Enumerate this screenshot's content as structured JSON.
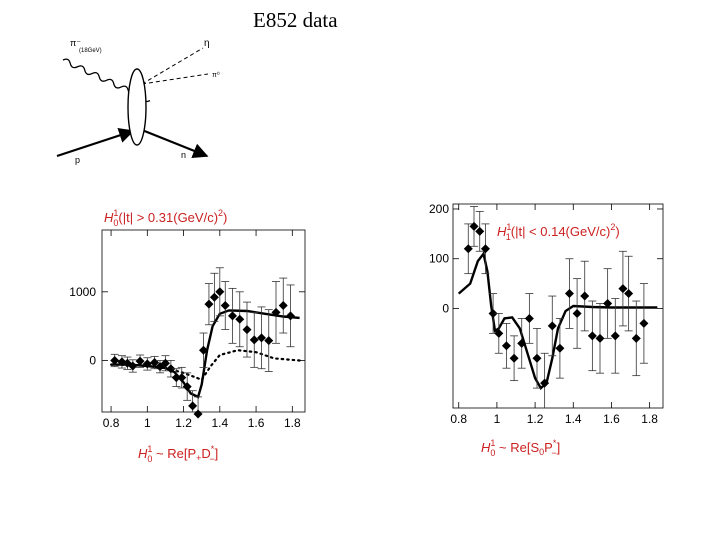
{
  "title": "E852 data",
  "diagram": {
    "labels": {
      "beam": "π⁻",
      "beam_energy": "(18GeV)",
      "eta": "η",
      "pi0": "π⁰",
      "proton": "p",
      "neutron": "n"
    }
  },
  "chart_data": [
    {
      "type": "scatter",
      "title": "H01(|t| > 0.31(GeV/c)²)",
      "title_parts": {
        "h": "H",
        "sup": "1",
        "sub": "0",
        "rest": "(|t| > 0.31(GeV/c)",
        "exp": "2",
        "close": ")"
      },
      "xlabel": "H01 ~ Re[P+D*−]",
      "xlabel_parts": {
        "h": "H",
        "sup": "1",
        "sub": "0",
        "rest": " ~ Re[P",
        "s1": "+",
        "mid": "D",
        "s2": "*",
        "s3": "−",
        "close": "]"
      },
      "xlim": [
        0.75,
        1.87
      ],
      "ylim": [
        -750,
        1900
      ],
      "xticks": [
        0.8,
        1,
        1.2,
        1.4,
        1.6,
        1.8
      ],
      "xtick_labels": [
        "0.8",
        "1",
        "1.2",
        "1.4",
        "1.6",
        "1.8"
      ],
      "yticks": [
        0,
        1000
      ],
      "ytick_labels": [
        "0",
        "1000"
      ],
      "series": [
        {
          "name": "data",
          "kind": "points",
          "x": [
            0.82,
            0.86,
            0.89,
            0.92,
            0.96,
            1.0,
            1.04,
            1.07,
            1.1,
            1.13,
            1.16,
            1.19,
            1.22,
            1.25,
            1.28,
            1.31,
            1.34,
            1.37,
            1.4,
            1.43,
            1.47,
            1.51,
            1.55,
            1.59,
            1.63,
            1.67,
            1.71,
            1.75,
            1.79
          ],
          "y": [
            0,
            -20,
            -40,
            -80,
            -10,
            -50,
            -30,
            -90,
            -40,
            -120,
            -250,
            -250,
            -380,
            -660,
            -780,
            150,
            820,
            920,
            1000,
            800,
            650,
            600,
            450,
            300,
            330,
            290,
            700,
            800,
            650
          ],
          "err": [
            90,
            90,
            90,
            90,
            90,
            90,
            90,
            90,
            110,
            120,
            130,
            150,
            200,
            220,
            250,
            250,
            300,
            350,
            350,
            350,
            400,
            400,
            400,
            400,
            450,
            450,
            450,
            400,
            450
          ]
        },
        {
          "name": "fit_solid",
          "kind": "line",
          "style": "solid",
          "x": [
            0.8,
            0.9,
            1.0,
            1.1,
            1.15,
            1.2,
            1.24,
            1.28,
            1.3,
            1.33,
            1.36,
            1.4,
            1.45,
            1.55,
            1.65,
            1.75,
            1.84
          ],
          "y": [
            -60,
            -60,
            -80,
            -110,
            -170,
            -320,
            -480,
            -530,
            -350,
            150,
            500,
            680,
            730,
            720,
            680,
            640,
            620
          ]
        },
        {
          "name": "fit_dotted",
          "kind": "line",
          "style": "dotted",
          "x": [
            0.8,
            0.9,
            1.0,
            1.1,
            1.2,
            1.3,
            1.35,
            1.4,
            1.5,
            1.6,
            1.7,
            1.84
          ],
          "y": [
            -60,
            -60,
            -80,
            -110,
            -180,
            -280,
            -80,
            80,
            150,
            120,
            30,
            0
          ]
        }
      ]
    },
    {
      "type": "scatter",
      "title": "H11(|t| < 0.14(GeV/c)²)",
      "title_parts": {
        "h": "H",
        "sup": "1",
        "sub": "1",
        "rest": "(|t| < 0.14(GeV/c)",
        "exp": "2",
        "close": ")"
      },
      "xlabel": "H01 ~ Re[S0P*−]",
      "xlabel_parts": {
        "h": "H",
        "sup": "1",
        "sub": "0",
        "rest": " ~ Re[S",
        "s1": "0",
        "mid": "P",
        "s2": "*",
        "s3": "−",
        "close": "]"
      },
      "xlim": [
        0.77,
        1.87
      ],
      "ylim": [
        -200,
        210
      ],
      "xticks": [
        0.8,
        1,
        1.2,
        1.4,
        1.6,
        1.8
      ],
      "xtick_labels": [
        "0.8",
        "1",
        "1.2",
        "1.4",
        "1.6",
        "1.8"
      ],
      "yticks": [
        0,
        100,
        200
      ],
      "ytick_labels": [
        "0",
        "100",
        "200"
      ],
      "series": [
        {
          "name": "data",
          "kind": "points",
          "x": [
            0.85,
            0.88,
            0.91,
            0.94,
            0.98,
            1.01,
            1.05,
            1.09,
            1.13,
            1.17,
            1.21,
            1.25,
            1.29,
            1.33,
            1.38,
            1.42,
            1.46,
            1.5,
            1.54,
            1.58,
            1.62,
            1.66,
            1.69,
            1.73,
            1.77
          ],
          "y": [
            120,
            165,
            155,
            120,
            -10,
            -50,
            -75,
            -100,
            -70,
            -20,
            -100,
            -150,
            -35,
            -80,
            30,
            -10,
            25,
            -55,
            -60,
            10,
            -55,
            40,
            30,
            -60,
            -30
          ],
          "err": [
            50,
            40,
            40,
            50,
            40,
            40,
            45,
            45,
            50,
            50,
            60,
            60,
            60,
            60,
            70,
            70,
            70,
            70,
            70,
            70,
            75,
            75,
            75,
            75,
            80
          ]
        },
        {
          "name": "fit_solid",
          "kind": "line",
          "style": "solid",
          "x": [
            0.8,
            0.86,
            0.9,
            0.93,
            0.95,
            0.97,
            0.99,
            1.01,
            1.04,
            1.08,
            1.12,
            1.16,
            1.2,
            1.23,
            1.26,
            1.29,
            1.32,
            1.36,
            1.4,
            1.5,
            1.6,
            1.7,
            1.84
          ],
          "y": [
            30,
            50,
            95,
            110,
            75,
            5,
            -45,
            -40,
            -20,
            -18,
            -40,
            -90,
            -140,
            -160,
            -150,
            -100,
            -40,
            -5,
            5,
            3,
            2,
            2,
            2
          ]
        }
      ]
    }
  ]
}
